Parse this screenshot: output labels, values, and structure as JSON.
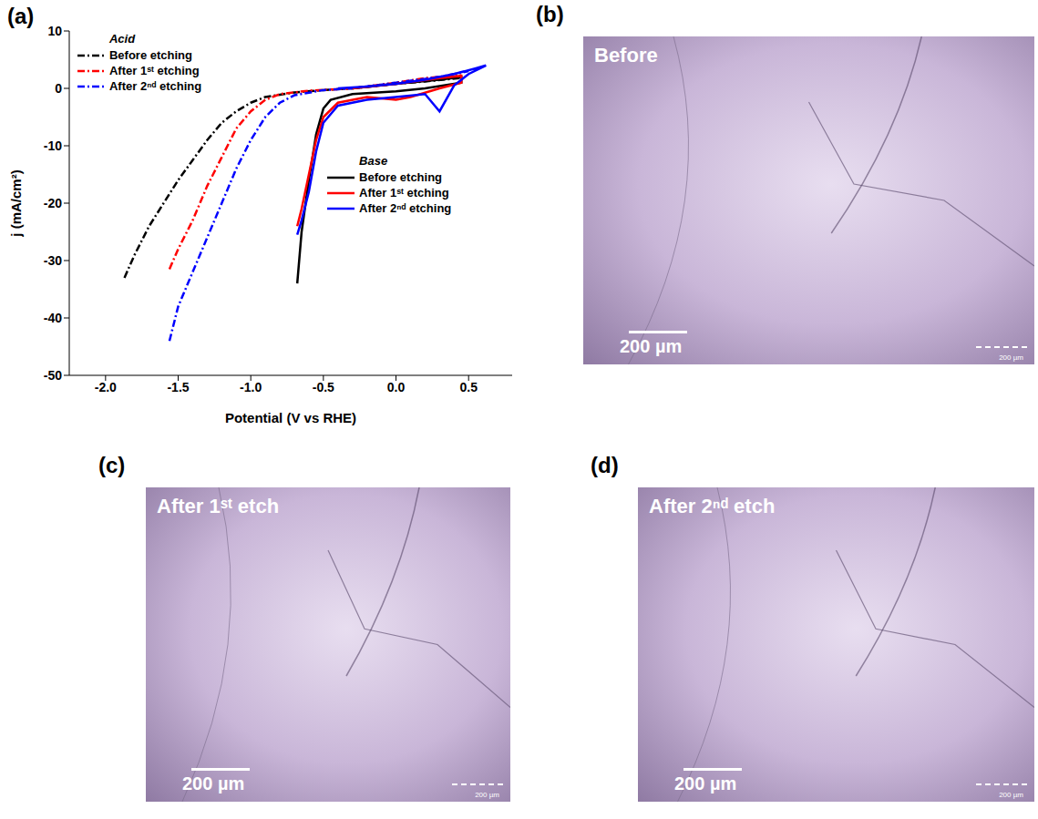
{
  "chart_data": {
    "type": "line",
    "panel_label": "(a)",
    "xlabel": "Potential (V vs RHE)",
    "ylabel": "j (mA/cm²)",
    "xlim": [
      -2.25,
      0.8
    ],
    "xticks": [
      {
        "value": -2,
        "label": "-2.0"
      },
      -1.5,
      {
        "value": -1,
        "label": "-1.0"
      },
      -0.5,
      {
        "value": 0,
        "label": "0.0"
      },
      0.5
    ],
    "ylim": [
      -50,
      10
    ],
    "yticks": [
      10,
      0,
      -10,
      -20,
      -30,
      -40,
      -50
    ],
    "series_groups": [
      {
        "name": "Acid",
        "series": [
          {
            "name": "Before etching",
            "color": "#000000",
            "line_style": "dashdot",
            "x": [
              -1.87,
              -1.8,
              -1.7,
              -1.6,
              -1.5,
              -1.4,
              -1.3,
              -1.2,
              -1.1,
              -1.0,
              -0.9,
              -0.7,
              -0.5,
              -0.3,
              0.0,
              0.2,
              0.45
            ],
            "values": [
              -33,
              -29,
              -24,
              -20,
              -16,
              -12.5,
              -9,
              -6,
              -4,
              -2.5,
              -1.5,
              -0.7,
              -0.3,
              0,
              0.8,
              1.2,
              1.8
            ]
          },
          {
            "name": "After 1ˢᵗ etching",
            "color": "#ff0000",
            "line_style": "dashdot",
            "x": [
              -1.56,
              -1.5,
              -1.4,
              -1.3,
              -1.2,
              -1.1,
              -1.0,
              -0.9,
              -0.8,
              -0.6,
              -0.3,
              0.0,
              0.2,
              0.45
            ],
            "values": [
              -31.5,
              -28,
              -23,
              -17,
              -12,
              -7,
              -4,
              -2,
              -1,
              -0.4,
              0,
              1,
              1.8,
              2.3
            ]
          },
          {
            "name": "After 2ⁿᵈ etching",
            "color": "#0000ff",
            "line_style": "dashdot",
            "x": [
              -1.56,
              -1.5,
              -1.4,
              -1.3,
              -1.2,
              -1.1,
              -1.0,
              -0.9,
              -0.8,
              -0.7,
              -0.5,
              -0.3,
              0.0,
              0.3,
              0.5
            ],
            "values": [
              -44,
              -38,
              -32,
              -26,
              -20,
              -14,
              -9,
              -5,
              -2.5,
              -1.2,
              -0.3,
              0,
              1,
              2,
              3
            ]
          }
        ]
      },
      {
        "name": "Base",
        "series": [
          {
            "name": "Before etching",
            "color": "#000000",
            "line_style": "solid",
            "x": [
              -0.3,
              0.0,
              0.3,
              0.45,
              0.45,
              0.2,
              0.0,
              -0.3,
              -0.45,
              -0.5,
              -0.55,
              -0.6,
              -0.65,
              -0.68
            ],
            "values": [
              0,
              0.8,
              1.5,
              2,
              1,
              0,
              -0.5,
              -1,
              -2,
              -3.5,
              -8,
              -16,
              -25,
              -34
            ]
          },
          {
            "name": "After 1ˢᵗ etching",
            "color": "#ff0000",
            "line_style": "solid",
            "x": [
              -0.3,
              0.0,
              0.3,
              0.45,
              0.45,
              0.3,
              0.1,
              0.0,
              -0.2,
              -0.4,
              -0.5,
              -0.55,
              -0.6,
              -0.65,
              -0.68
            ],
            "values": [
              0,
              0.8,
              1.8,
              2.2,
              1,
              0,
              -1.5,
              -2,
              -1.5,
              -2.5,
              -5,
              -9,
              -15,
              -21,
              -24
            ]
          },
          {
            "name": "After 2ⁿᵈ etching",
            "color": "#0000ff",
            "line_style": "solid",
            "x": [
              -0.4,
              -0.2,
              0.0,
              0.2,
              0.4,
              0.55,
              0.62,
              0.5,
              0.4,
              0.3,
              0.2,
              0.0,
              -0.2,
              -0.4,
              -0.5,
              -0.55,
              -0.6,
              -0.65,
              -0.68
            ],
            "values": [
              0,
              0.3,
              0.8,
              1.5,
              2.5,
              3.5,
              4,
              2.5,
              0.5,
              -4,
              -1,
              -1.5,
              -2,
              -3,
              -6,
              -11,
              -18,
              -23,
              -25.5
            ]
          }
        ]
      }
    ]
  },
  "micrographs": [
    {
      "panel_label": "(b)",
      "caption": "Before",
      "scale_bar": "200 µm"
    },
    {
      "panel_label": "(c)",
      "caption": "After 1ˢᵗ etch",
      "scale_bar": "200 µm"
    },
    {
      "panel_label": "(d)",
      "caption": "After 2ⁿᵈ etch",
      "scale_bar": "200 µm"
    }
  ]
}
